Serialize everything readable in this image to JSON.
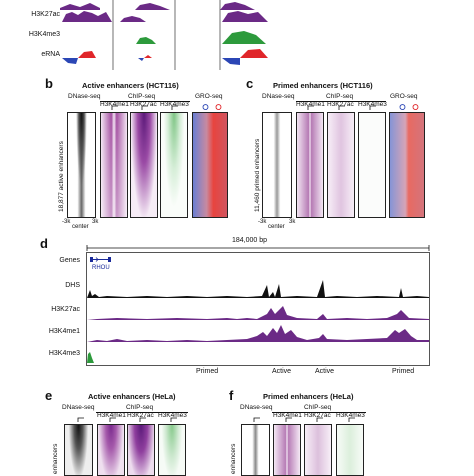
{
  "panel_a": {
    "tracks": [
      "H3K27ac",
      "H3K4me3",
      "eRNA"
    ]
  },
  "panel_b": {
    "letter": "b",
    "title": "Active enhancers (HCT116)",
    "col_dnase": "DNase-seq",
    "group_chip": "ChIP-seq",
    "col_k4me1": "H3K4me1",
    "col_k27ac": "H3K27ac",
    "col_k4me3": "H3K4me3",
    "col_gro": "GRO-seq",
    "row_label": "18,877 active enhancers",
    "axis_left": "-3k",
    "axis_center": "center",
    "axis_right": "3k"
  },
  "panel_c": {
    "letter": "c",
    "title": "Primed enhancers (HCT116)",
    "col_dnase": "DNase-seq",
    "group_chip": "ChIP-seq",
    "col_k4me1": "H3K4me1",
    "col_k27ac": "H3K27ac",
    "col_k4me3": "H3K4me3",
    "col_gro": "GRO-seq",
    "row_label": "11,460 primed enhancers",
    "axis_left": "-3k",
    "axis_center": "center",
    "axis_right": "3k"
  },
  "panel_d": {
    "letter": "d",
    "scale": "184,000 bp",
    "gene_label": "Genes",
    "gene_name": "RHOU",
    "tracks": [
      "DHS",
      "H3K27ac",
      "H3K4me1",
      "H3K4me3"
    ],
    "annotations": [
      "Primed",
      "Active",
      "Active",
      "Primed"
    ]
  },
  "panel_e": {
    "letter": "e",
    "title": "Active enhancers (HeLa)",
    "col_dnase": "DNase-seq",
    "group_chip": "ChIP-seq",
    "col_k4me1": "H3K4me1",
    "col_k27ac": "H3K27ac",
    "col_k4me3": "H3K4me3",
    "row_label": "enhancers"
  },
  "panel_f": {
    "letter": "f",
    "title": "Primed enhancers (HeLa)",
    "col_dnase": "DNase-seq",
    "group_chip": "ChIP-seq",
    "col_k4me1": "H3K4me1",
    "col_k27ac": "H3K27ac",
    "col_k4me3": "H3K4me3",
    "row_label": "enhancers"
  },
  "colors": {
    "purple": "#6b2a86",
    "green": "#2d9a3c",
    "red": "#e0262a",
    "blue": "#2b46b5",
    "black": "#111111"
  }
}
